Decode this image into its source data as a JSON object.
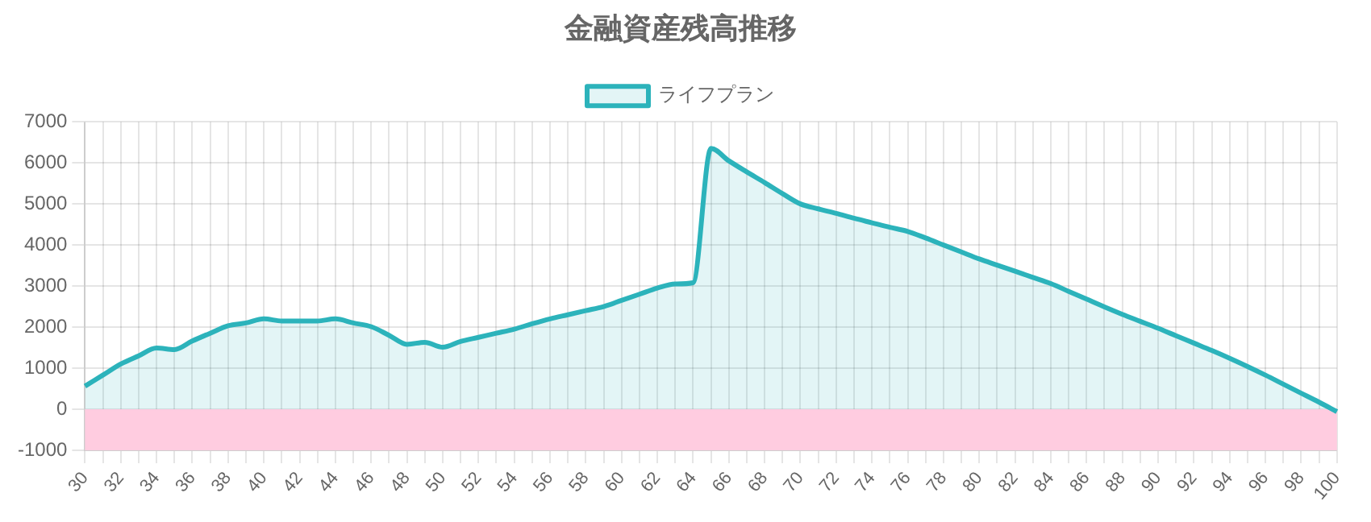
{
  "chart_data": {
    "type": "area",
    "title": "金融資産残高推移",
    "categories": [
      "30",
      null,
      "32",
      null,
      "34",
      null,
      "36",
      null,
      "38",
      null,
      "40",
      null,
      "42",
      null,
      "44",
      null,
      "46",
      null,
      "48",
      null,
      "50",
      null,
      "52",
      null,
      "54",
      null,
      "56",
      null,
      "58",
      null,
      "60",
      null,
      "62",
      null,
      "64",
      null,
      "66",
      null,
      "68",
      null,
      "70",
      null,
      "72",
      null,
      "74",
      null,
      "76",
      null,
      "78",
      null,
      "80",
      null,
      "82",
      null,
      "84",
      null,
      "86",
      null,
      "88",
      null,
      "90",
      null,
      "92",
      null,
      "94",
      null,
      "96",
      null,
      "98",
      null,
      "100"
    ],
    "series": [
      {
        "name": "ライフプラン",
        "color": "#2cb3bb",
        "values": [
          560,
          830,
          1100,
          1300,
          1490,
          1450,
          1660,
          1850,
          2030,
          2100,
          2200,
          2150,
          2150,
          2150,
          2200,
          2100,
          2010,
          1800,
          1580,
          1630,
          1510,
          1650,
          1750,
          1850,
          1950,
          2080,
          2200,
          2300,
          2400,
          2500,
          2650,
          2800,
          2950,
          3050,
          3080,
          6350,
          6050,
          5780,
          5520,
          5250,
          5000,
          4880,
          4770,
          4650,
          4540,
          4430,
          4330,
          4170,
          4000,
          3830,
          3660,
          3510,
          3360,
          3210,
          3060,
          2870,
          2680,
          2490,
          2310,
          2140,
          1970,
          1790,
          1610,
          1430,
          1240,
          1040,
          830,
          610,
          390,
          170,
          -60
        ]
      }
    ],
    "ylim": [
      -1000,
      7000
    ],
    "yticks": [
      -1000,
      0,
      1000,
      2000,
      3000,
      4000,
      5000,
      6000,
      7000
    ],
    "bands": [
      {
        "axis": "y",
        "from": -1000,
        "to": 0,
        "color": "#ffcce0"
      }
    ],
    "grid": true,
    "legend": "top"
  }
}
